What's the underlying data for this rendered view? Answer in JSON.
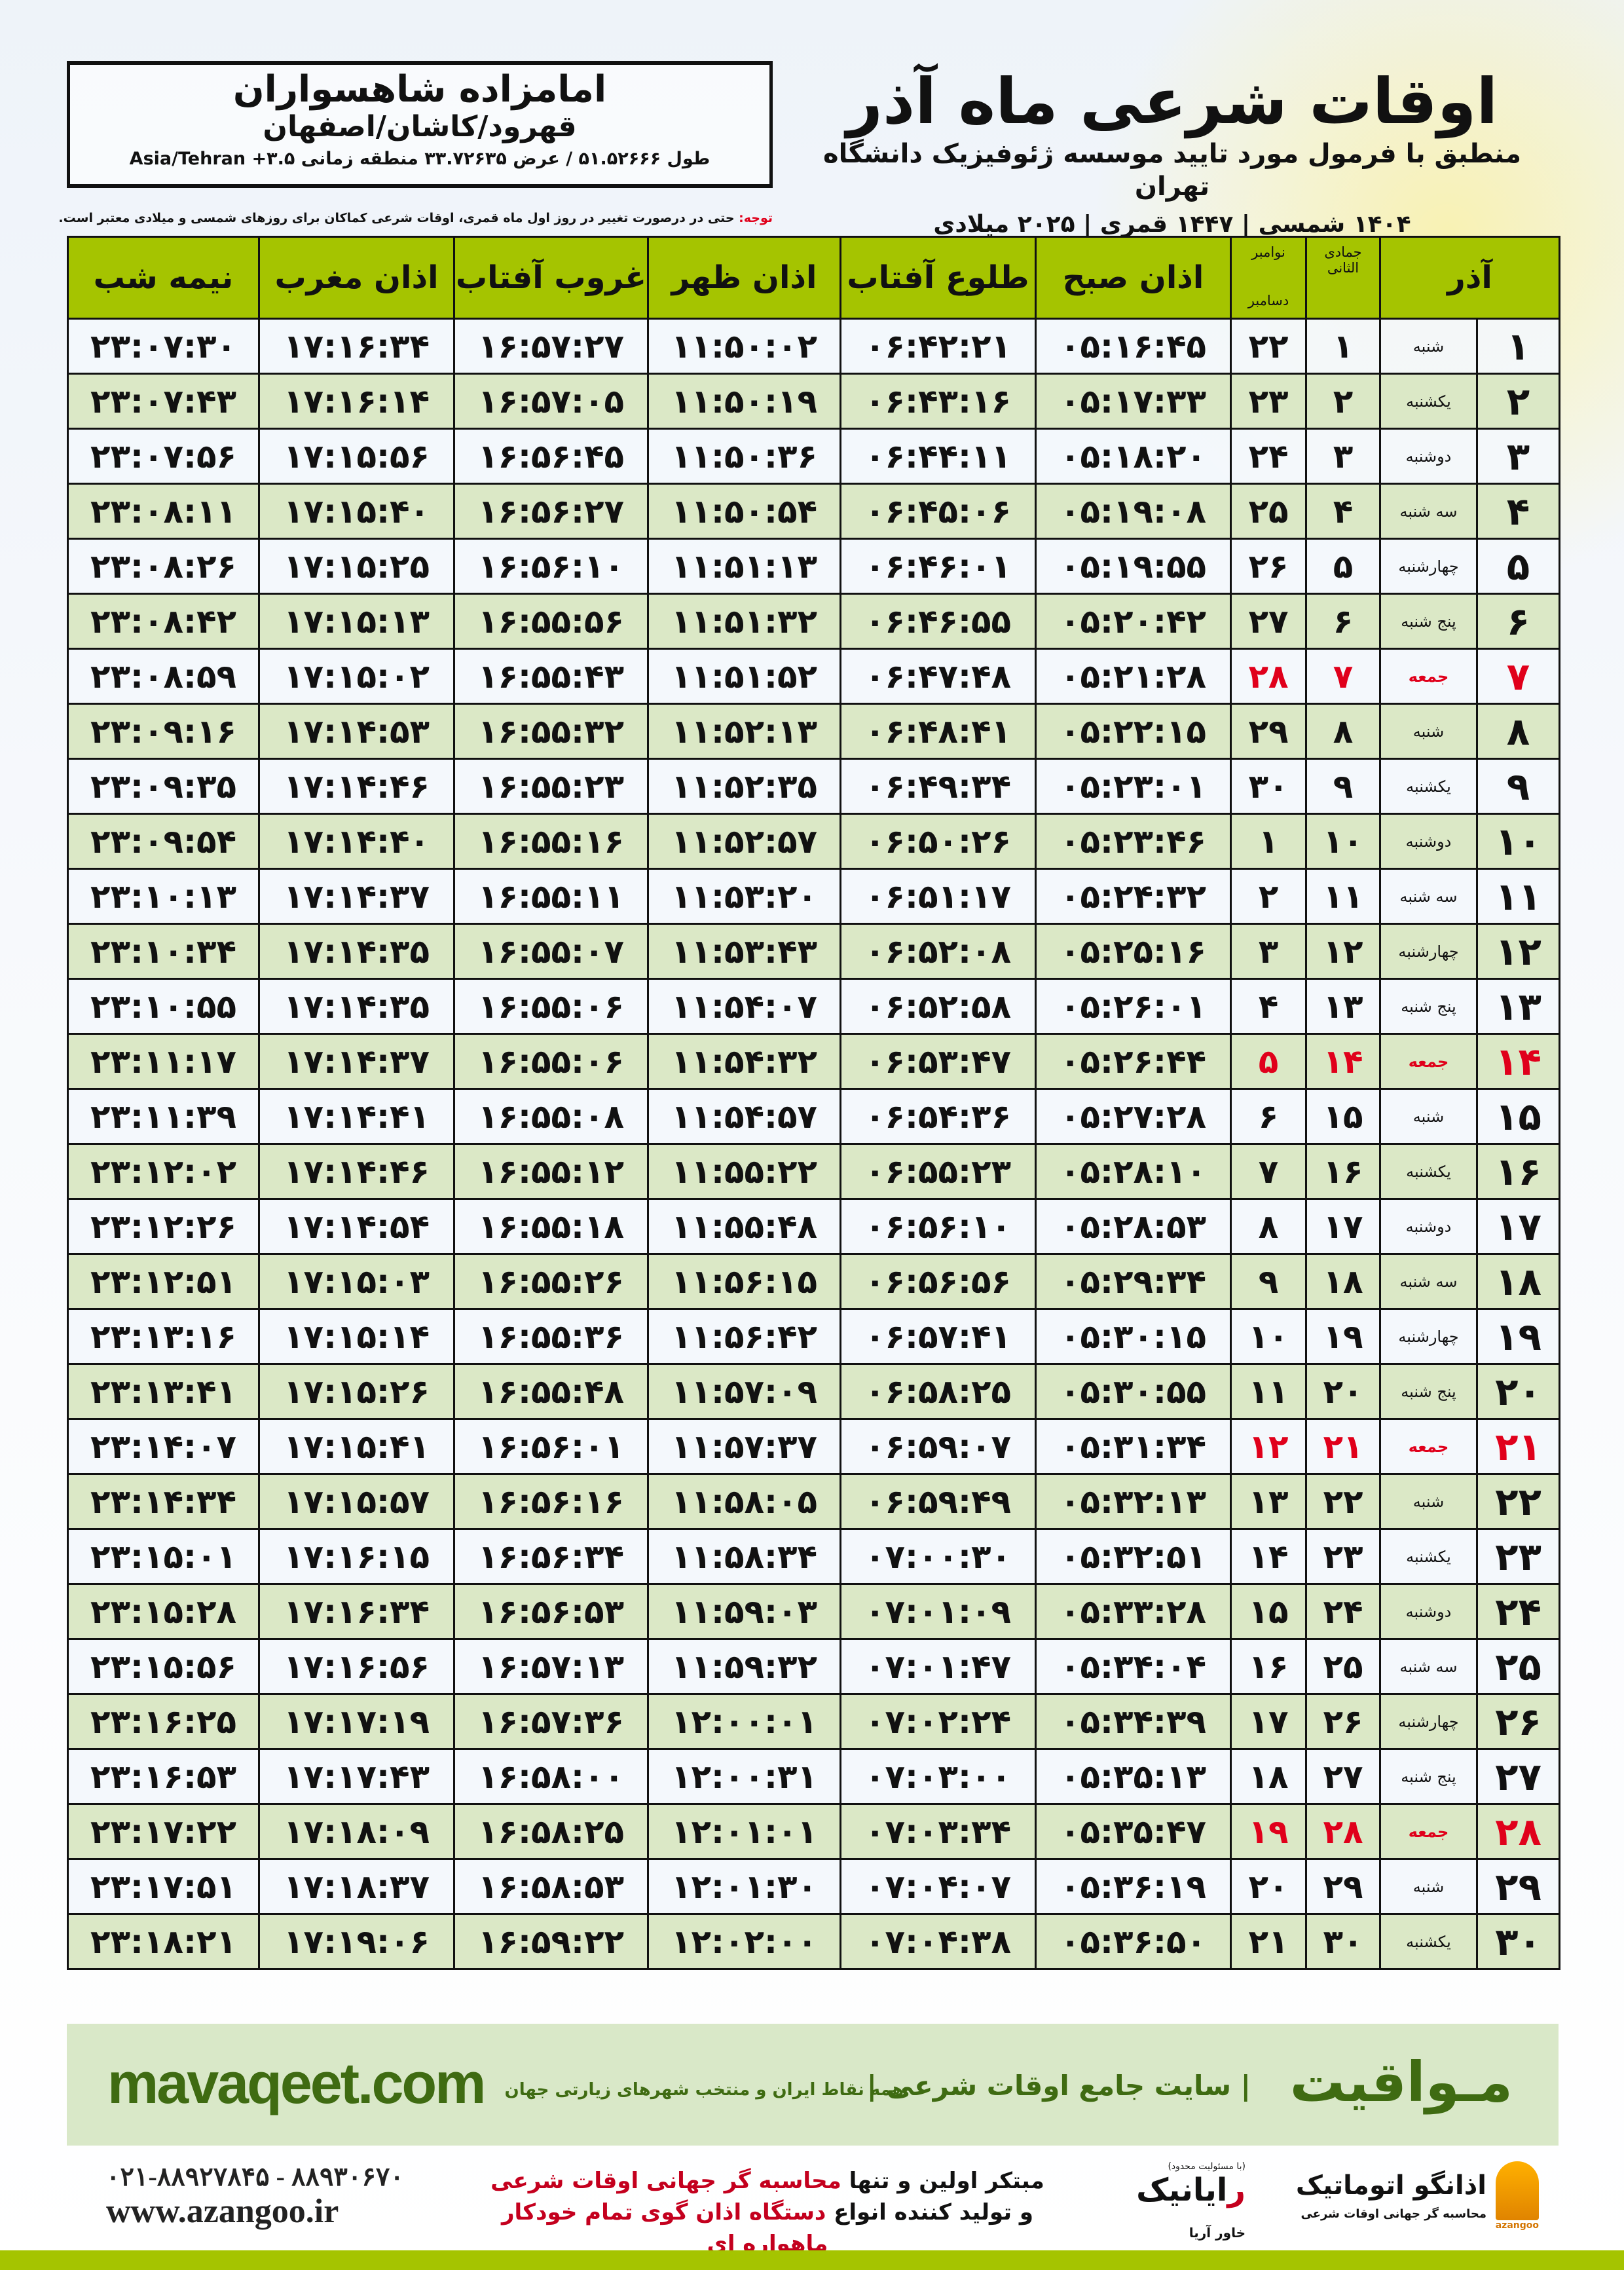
{
  "header": {
    "shrine_name": "امامزاده شاهسواران",
    "cities": "قهرود/کاشان/اصفهان",
    "coordinates": "طول ۵۱.۵۲۶۶۶ / عرض ۳۳.۷۲۶۳۵ منطقه زمانی ۳.۵+ Asia/Tehran",
    "main_title": "اوقات شرعی ماه آذر",
    "subtitle": "منطبق با فرمول مورد تایید موسسه ژئوفیزیک دانشگاه تهران",
    "years": "۱۴۰۴ شمسی | ۱۴۴۷ قمری | ۲۰۲۵ میلادی"
  },
  "note": {
    "label": "توجه:",
    "text": " حتی در درصورت تغییر در روز اول ماه قمری، اوقات شرعی کماکان برای روزهای شمسی و میلادی معتبر است."
  },
  "table": {
    "headers": {
      "day": "آذر",
      "weekday": "",
      "qamari": "جمادی الثانی",
      "miladi_top": "نوامبر",
      "miladi_bottom": "دسامبر",
      "sobh": "اذان صبح",
      "tolu": "طلوع آفتاب",
      "zohr": "اذان ظهر",
      "ghorub": "غروب آفتاب",
      "maghrib": "اذان مغرب",
      "nimeshab": "نیمه شب"
    },
    "friday_color": "#e0001b",
    "rows": [
      {
        "day": "۱",
        "weekday": "شنبه",
        "qamari": "۱",
        "miladi": "۲۲",
        "sobh": "۰۵:۱۶:۴۵",
        "tolu": "۰۶:۴۲:۲۱",
        "zohr": "۱۱:۵۰:۰۲",
        "ghorub": "۱۶:۵۷:۲۷",
        "maghrib": "۱۷:۱۶:۳۴",
        "nimeshab": "۲۳:۰۷:۳۰",
        "friday": false
      },
      {
        "day": "۲",
        "weekday": "یکشنبه",
        "qamari": "۲",
        "miladi": "۲۳",
        "sobh": "۰۵:۱۷:۳۳",
        "tolu": "۰۶:۴۳:۱۶",
        "zohr": "۱۱:۵۰:۱۹",
        "ghorub": "۱۶:۵۷:۰۵",
        "maghrib": "۱۷:۱۶:۱۴",
        "nimeshab": "۲۳:۰۷:۴۳",
        "friday": false
      },
      {
        "day": "۳",
        "weekday": "دوشنبه",
        "qamari": "۳",
        "miladi": "۲۴",
        "sobh": "۰۵:۱۸:۲۰",
        "tolu": "۰۶:۴۴:۱۱",
        "zohr": "۱۱:۵۰:۳۶",
        "ghorub": "۱۶:۵۶:۴۵",
        "maghrib": "۱۷:۱۵:۵۶",
        "nimeshab": "۲۳:۰۷:۵۶",
        "friday": false
      },
      {
        "day": "۴",
        "weekday": "سه شنبه",
        "qamari": "۴",
        "miladi": "۲۵",
        "sobh": "۰۵:۱۹:۰۸",
        "tolu": "۰۶:۴۵:۰۶",
        "zohr": "۱۱:۵۰:۵۴",
        "ghorub": "۱۶:۵۶:۲۷",
        "maghrib": "۱۷:۱۵:۴۰",
        "nimeshab": "۲۳:۰۸:۱۱",
        "friday": false
      },
      {
        "day": "۵",
        "weekday": "چهارشنبه",
        "qamari": "۵",
        "miladi": "۲۶",
        "sobh": "۰۵:۱۹:۵۵",
        "tolu": "۰۶:۴۶:۰۱",
        "zohr": "۱۱:۵۱:۱۳",
        "ghorub": "۱۶:۵۶:۱۰",
        "maghrib": "۱۷:۱۵:۲۵",
        "nimeshab": "۲۳:۰۸:۲۶",
        "friday": false
      },
      {
        "day": "۶",
        "weekday": "پنج شنبه",
        "qamari": "۶",
        "miladi": "۲۷",
        "sobh": "۰۵:۲۰:۴۲",
        "tolu": "۰۶:۴۶:۵۵",
        "zohr": "۱۱:۵۱:۳۲",
        "ghorub": "۱۶:۵۵:۵۶",
        "maghrib": "۱۷:۱۵:۱۳",
        "nimeshab": "۲۳:۰۸:۴۲",
        "friday": false
      },
      {
        "day": "۷",
        "weekday": "جمعه",
        "qamari": "۷",
        "miladi": "۲۸",
        "sobh": "۰۵:۲۱:۲۸",
        "tolu": "۰۶:۴۷:۴۸",
        "zohr": "۱۱:۵۱:۵۲",
        "ghorub": "۱۶:۵۵:۴۳",
        "maghrib": "۱۷:۱۵:۰۲",
        "nimeshab": "۲۳:۰۸:۵۹",
        "friday": true
      },
      {
        "day": "۸",
        "weekday": "شنبه",
        "qamari": "۸",
        "miladi": "۲۹",
        "sobh": "۰۵:۲۲:۱۵",
        "tolu": "۰۶:۴۸:۴۱",
        "zohr": "۱۱:۵۲:۱۳",
        "ghorub": "۱۶:۵۵:۳۲",
        "maghrib": "۱۷:۱۴:۵۳",
        "nimeshab": "۲۳:۰۹:۱۶",
        "friday": false
      },
      {
        "day": "۹",
        "weekday": "یکشنبه",
        "qamari": "۹",
        "miladi": "۳۰",
        "sobh": "۰۵:۲۳:۰۱",
        "tolu": "۰۶:۴۹:۳۴",
        "zohr": "۱۱:۵۲:۳۵",
        "ghorub": "۱۶:۵۵:۲۳",
        "maghrib": "۱۷:۱۴:۴۶",
        "nimeshab": "۲۳:۰۹:۳۵",
        "friday": false
      },
      {
        "day": "۱۰",
        "weekday": "دوشنبه",
        "qamari": "۱۰",
        "miladi": "۱",
        "sobh": "۰۵:۲۳:۴۶",
        "tolu": "۰۶:۵۰:۲۶",
        "zohr": "۱۱:۵۲:۵۷",
        "ghorub": "۱۶:۵۵:۱۶",
        "maghrib": "۱۷:۱۴:۴۰",
        "nimeshab": "۲۳:۰۹:۵۴",
        "friday": false
      },
      {
        "day": "۱۱",
        "weekday": "سه شنبه",
        "qamari": "۱۱",
        "miladi": "۲",
        "sobh": "۰۵:۲۴:۳۲",
        "tolu": "۰۶:۵۱:۱۷",
        "zohr": "۱۱:۵۳:۲۰",
        "ghorub": "۱۶:۵۵:۱۱",
        "maghrib": "۱۷:۱۴:۳۷",
        "nimeshab": "۲۳:۱۰:۱۳",
        "friday": false
      },
      {
        "day": "۱۲",
        "weekday": "چهارشنبه",
        "qamari": "۱۲",
        "miladi": "۳",
        "sobh": "۰۵:۲۵:۱۶",
        "tolu": "۰۶:۵۲:۰۸",
        "zohr": "۱۱:۵۳:۴۳",
        "ghorub": "۱۶:۵۵:۰۷",
        "maghrib": "۱۷:۱۴:۳۵",
        "nimeshab": "۲۳:۱۰:۳۴",
        "friday": false
      },
      {
        "day": "۱۳",
        "weekday": "پنج شنبه",
        "qamari": "۱۳",
        "miladi": "۴",
        "sobh": "۰۵:۲۶:۰۱",
        "tolu": "۰۶:۵۲:۵۸",
        "zohr": "۱۱:۵۴:۰۷",
        "ghorub": "۱۶:۵۵:۰۶",
        "maghrib": "۱۷:۱۴:۳۵",
        "nimeshab": "۲۳:۱۰:۵۵",
        "friday": false
      },
      {
        "day": "۱۴",
        "weekday": "جمعه",
        "qamari": "۱۴",
        "miladi": "۵",
        "sobh": "۰۵:۲۶:۴۴",
        "tolu": "۰۶:۵۳:۴۷",
        "zohr": "۱۱:۵۴:۳۲",
        "ghorub": "۱۶:۵۵:۰۶",
        "maghrib": "۱۷:۱۴:۳۷",
        "nimeshab": "۲۳:۱۱:۱۷",
        "friday": true
      },
      {
        "day": "۱۵",
        "weekday": "شنبه",
        "qamari": "۱۵",
        "miladi": "۶",
        "sobh": "۰۵:۲۷:۲۸",
        "tolu": "۰۶:۵۴:۳۶",
        "zohr": "۱۱:۵۴:۵۷",
        "ghorub": "۱۶:۵۵:۰۸",
        "maghrib": "۱۷:۱۴:۴۱",
        "nimeshab": "۲۳:۱۱:۳۹",
        "friday": false
      },
      {
        "day": "۱۶",
        "weekday": "یکشنبه",
        "qamari": "۱۶",
        "miladi": "۷",
        "sobh": "۰۵:۲۸:۱۰",
        "tolu": "۰۶:۵۵:۲۳",
        "zohr": "۱۱:۵۵:۲۲",
        "ghorub": "۱۶:۵۵:۱۲",
        "maghrib": "۱۷:۱۴:۴۶",
        "nimeshab": "۲۳:۱۲:۰۲",
        "friday": false
      },
      {
        "day": "۱۷",
        "weekday": "دوشنبه",
        "qamari": "۱۷",
        "miladi": "۸",
        "sobh": "۰۵:۲۸:۵۳",
        "tolu": "۰۶:۵۶:۱۰",
        "zohr": "۱۱:۵۵:۴۸",
        "ghorub": "۱۶:۵۵:۱۸",
        "maghrib": "۱۷:۱۴:۵۴",
        "nimeshab": "۲۳:۱۲:۲۶",
        "friday": false
      },
      {
        "day": "۱۸",
        "weekday": "سه شنبه",
        "qamari": "۱۸",
        "miladi": "۹",
        "sobh": "۰۵:۲۹:۳۴",
        "tolu": "۰۶:۵۶:۵۶",
        "zohr": "۱۱:۵۶:۱۵",
        "ghorub": "۱۶:۵۵:۲۶",
        "maghrib": "۱۷:۱۵:۰۳",
        "nimeshab": "۲۳:۱۲:۵۱",
        "friday": false
      },
      {
        "day": "۱۹",
        "weekday": "چهارشنبه",
        "qamari": "۱۹",
        "miladi": "۱۰",
        "sobh": "۰۵:۳۰:۱۵",
        "tolu": "۰۶:۵۷:۴۱",
        "zohr": "۱۱:۵۶:۴۲",
        "ghorub": "۱۶:۵۵:۳۶",
        "maghrib": "۱۷:۱۵:۱۴",
        "nimeshab": "۲۳:۱۳:۱۶",
        "friday": false
      },
      {
        "day": "۲۰",
        "weekday": "پنج شنبه",
        "qamari": "۲۰",
        "miladi": "۱۱",
        "sobh": "۰۵:۳۰:۵۵",
        "tolu": "۰۶:۵۸:۲۵",
        "zohr": "۱۱:۵۷:۰۹",
        "ghorub": "۱۶:۵۵:۴۸",
        "maghrib": "۱۷:۱۵:۲۶",
        "nimeshab": "۲۳:۱۳:۴۱",
        "friday": false
      },
      {
        "day": "۲۱",
        "weekday": "جمعه",
        "qamari": "۲۱",
        "miladi": "۱۲",
        "sobh": "۰۵:۳۱:۳۴",
        "tolu": "۰۶:۵۹:۰۷",
        "zohr": "۱۱:۵۷:۳۷",
        "ghorub": "۱۶:۵۶:۰۱",
        "maghrib": "۱۷:۱۵:۴۱",
        "nimeshab": "۲۳:۱۴:۰۷",
        "friday": true
      },
      {
        "day": "۲۲",
        "weekday": "شنبه",
        "qamari": "۲۲",
        "miladi": "۱۳",
        "sobh": "۰۵:۳۲:۱۳",
        "tolu": "۰۶:۵۹:۴۹",
        "zohr": "۱۱:۵۸:۰۵",
        "ghorub": "۱۶:۵۶:۱۶",
        "maghrib": "۱۷:۱۵:۵۷",
        "nimeshab": "۲۳:۱۴:۳۴",
        "friday": false
      },
      {
        "day": "۲۳",
        "weekday": "یکشنبه",
        "qamari": "۲۳",
        "miladi": "۱۴",
        "sobh": "۰۵:۳۲:۵۱",
        "tolu": "۰۷:۰۰:۳۰",
        "zohr": "۱۱:۵۸:۳۴",
        "ghorub": "۱۶:۵۶:۳۴",
        "maghrib": "۱۷:۱۶:۱۵",
        "nimeshab": "۲۳:۱۵:۰۱",
        "friday": false
      },
      {
        "day": "۲۴",
        "weekday": "دوشنبه",
        "qamari": "۲۴",
        "miladi": "۱۵",
        "sobh": "۰۵:۳۳:۲۸",
        "tolu": "۰۷:۰۱:۰۹",
        "zohr": "۱۱:۵۹:۰۳",
        "ghorub": "۱۶:۵۶:۵۳",
        "maghrib": "۱۷:۱۶:۳۴",
        "nimeshab": "۲۳:۱۵:۲۸",
        "friday": false
      },
      {
        "day": "۲۵",
        "weekday": "سه شنبه",
        "qamari": "۲۵",
        "miladi": "۱۶",
        "sobh": "۰۵:۳۴:۰۴",
        "tolu": "۰۷:۰۱:۴۷",
        "zohr": "۱۱:۵۹:۳۲",
        "ghorub": "۱۶:۵۷:۱۳",
        "maghrib": "۱۷:۱۶:۵۶",
        "nimeshab": "۲۳:۱۵:۵۶",
        "friday": false
      },
      {
        "day": "۲۶",
        "weekday": "چهارشنبه",
        "qamari": "۲۶",
        "miladi": "۱۷",
        "sobh": "۰۵:۳۴:۳۹",
        "tolu": "۰۷:۰۲:۲۴",
        "zohr": "۱۲:۰۰:۰۱",
        "ghorub": "۱۶:۵۷:۳۶",
        "maghrib": "۱۷:۱۷:۱۹",
        "nimeshab": "۲۳:۱۶:۲۵",
        "friday": false
      },
      {
        "day": "۲۷",
        "weekday": "پنج شنبه",
        "qamari": "۲۷",
        "miladi": "۱۸",
        "sobh": "۰۵:۳۵:۱۳",
        "tolu": "۰۷:۰۳:۰۰",
        "zohr": "۱۲:۰۰:۳۱",
        "ghorub": "۱۶:۵۸:۰۰",
        "maghrib": "۱۷:۱۷:۴۳",
        "nimeshab": "۲۳:۱۶:۵۳",
        "friday": false
      },
      {
        "day": "۲۸",
        "weekday": "جمعه",
        "qamari": "۲۸",
        "miladi": "۱۹",
        "sobh": "۰۵:۳۵:۴۷",
        "tolu": "۰۷:۰۳:۳۴",
        "zohr": "۱۲:۰۱:۰۱",
        "ghorub": "۱۶:۵۸:۲۵",
        "maghrib": "۱۷:۱۸:۰۹",
        "nimeshab": "۲۳:۱۷:۲۲",
        "friday": true
      },
      {
        "day": "۲۹",
        "weekday": "شنبه",
        "qamari": "۲۹",
        "miladi": "۲۰",
        "sobh": "۰۵:۳۶:۱۹",
        "tolu": "۰۷:۰۴:۰۷",
        "zohr": "۱۲:۰۱:۳۰",
        "ghorub": "۱۶:۵۸:۵۳",
        "maghrib": "۱۷:۱۸:۳۷",
        "nimeshab": "۲۳:۱۷:۵۱",
        "friday": false
      },
      {
        "day": "۳۰",
        "weekday": "یکشنبه",
        "qamari": "۳۰",
        "miladi": "۲۱",
        "sobh": "۰۵:۳۶:۵۰",
        "tolu": "۰۷:۰۴:۳۸",
        "zohr": "۱۲:۰۲:۰۰",
        "ghorub": "۱۶:۵۹:۲۲",
        "maghrib": "۱۷:۱۹:۰۶",
        "nimeshab": "۲۳:۱۸:۲۱",
        "friday": false
      }
    ]
  },
  "footer": {
    "brand": "مـواقیت",
    "tagline": "| سایت جامع اوقات شرعی |",
    "tagline2": "همه نقاط ایران و منتخب شهرهای زیارتی جهان",
    "site": "mavaqeet.com",
    "phone": "۰۲۱-۸۸۹۲۷۸۴۵ - ۸۸۹۳۰۶۷۰",
    "web": "www.azangoo.ir",
    "promo_line1_a": "مبتکر اولین و تنها ",
    "promo_line1_b": "محاسبه گر جهانی اوقات شرعی",
    "promo_line2_a": "و تولید کننده انواع ",
    "promo_line2_b": "دستگاه اذان گوی تمام خودکار ماهواره ای",
    "raya_small": "(با مسئولیت محدود)",
    "raya_name_a": "ر",
    "raya_name_b": "ایانیک",
    "raya_sub": "خاور آریا",
    "azangoo_name": "اذانگو اتوماتیک",
    "azangoo_sub": "محاسبه گر جهانی اوقات شرعی",
    "azangoo_mark": "azangoo"
  },
  "colors": {
    "header_green": "#a5c400",
    "row_green": "#dbe8c6",
    "friday_red": "#e0001b",
    "brand_green": "#3f6b12",
    "footer_band": "#d9e8c8"
  }
}
